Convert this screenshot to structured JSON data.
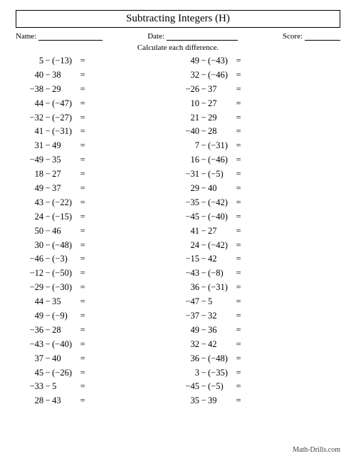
{
  "title": "Subtracting Integers (H)",
  "header": {
    "name_label": "Name:",
    "date_label": "Date:",
    "score_label": "Score:"
  },
  "instruction": "Calculate each difference.",
  "minus": "−",
  "equals": "=",
  "left_problems": [
    {
      "a": "5",
      "b": "(−13)"
    },
    {
      "a": "40",
      "b": "38"
    },
    {
      "a": "−38",
      "b": "29"
    },
    {
      "a": "44",
      "b": "(−47)"
    },
    {
      "a": "−32",
      "b": "(−27)"
    },
    {
      "a": "41",
      "b": "(−31)"
    },
    {
      "a": "31",
      "b": "49"
    },
    {
      "a": "−49",
      "b": "35"
    },
    {
      "a": "18",
      "b": "27"
    },
    {
      "a": "49",
      "b": "37"
    },
    {
      "a": "43",
      "b": "(−22)"
    },
    {
      "a": "24",
      "b": "(−15)"
    },
    {
      "a": "50",
      "b": "46"
    },
    {
      "a": "30",
      "b": "(−48)"
    },
    {
      "a": "−46",
      "b": "(−3)"
    },
    {
      "a": "−12",
      "b": "(−50)"
    },
    {
      "a": "−29",
      "b": "(−30)"
    },
    {
      "a": "44",
      "b": "35"
    },
    {
      "a": "49",
      "b": "(−9)"
    },
    {
      "a": "−36",
      "b": "28"
    },
    {
      "a": "−43",
      "b": "(−40)"
    },
    {
      "a": "37",
      "b": "40"
    },
    {
      "a": "45",
      "b": "(−26)"
    },
    {
      "a": "−33",
      "b": "5"
    },
    {
      "a": "28",
      "b": "43"
    }
  ],
  "right_problems": [
    {
      "a": "49",
      "b": "(−43)"
    },
    {
      "a": "32",
      "b": "(−46)"
    },
    {
      "a": "−26",
      "b": "37"
    },
    {
      "a": "10",
      "b": "27"
    },
    {
      "a": "21",
      "b": "29"
    },
    {
      "a": "−40",
      "b": "28"
    },
    {
      "a": "7",
      "b": "(−31)"
    },
    {
      "a": "16",
      "b": "(−46)"
    },
    {
      "a": "−31",
      "b": "(−5)"
    },
    {
      "a": "29",
      "b": "40"
    },
    {
      "a": "−35",
      "b": "(−42)"
    },
    {
      "a": "−45",
      "b": "(−40)"
    },
    {
      "a": "41",
      "b": "27"
    },
    {
      "a": "24",
      "b": "(−42)"
    },
    {
      "a": "−15",
      "b": "42"
    },
    {
      "a": "−43",
      "b": "(−8)"
    },
    {
      "a": "36",
      "b": "(−31)"
    },
    {
      "a": "−47",
      "b": "5"
    },
    {
      "a": "−37",
      "b": "32"
    },
    {
      "a": "49",
      "b": "36"
    },
    {
      "a": "32",
      "b": "42"
    },
    {
      "a": "36",
      "b": "(−48)"
    },
    {
      "a": "3",
      "b": "(−35)"
    },
    {
      "a": "−45",
      "b": "(−5)"
    },
    {
      "a": "35",
      "b": "39"
    }
  ],
  "footer": "Math-Drills.com"
}
